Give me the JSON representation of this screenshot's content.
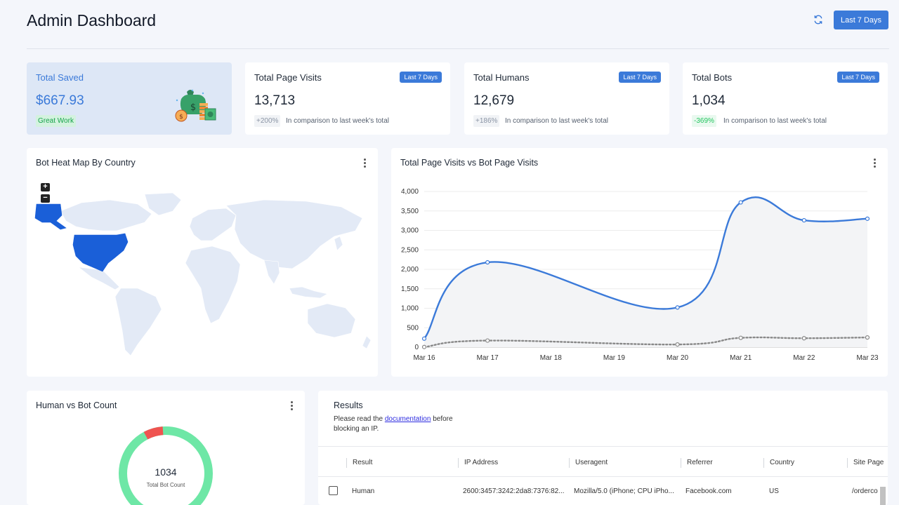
{
  "header": {
    "title": "Admin Dashboard",
    "refresh_icon": "refresh-icon",
    "range_label": "Last 7 Days"
  },
  "stats": {
    "saved": {
      "title": "Total Saved",
      "value": "$667.93",
      "badge": "Great Work",
      "icon": "money-icon"
    },
    "visits": {
      "title": "Total Page Visits",
      "badge": "Last 7 Days",
      "value": "13,713",
      "change": "+200%",
      "note": "In comparison to last week's total"
    },
    "humans": {
      "title": "Total Humans",
      "badge": "Last 7 Days",
      "value": "12,679",
      "change": "+186%",
      "note": "In comparison to last week's total"
    },
    "bots": {
      "title": "Total Bots",
      "badge": "Last 7 Days",
      "value": "1,034",
      "change": "-369%",
      "note": "In comparison to last week's total"
    }
  },
  "map": {
    "title": "Bot Heat Map By Country",
    "zoom_in": "+",
    "zoom_out": "−",
    "highlight_color": "#1a5fd8",
    "base_color": "#e3eaf6",
    "highlighted_countries": [
      "United States"
    ]
  },
  "visits_chart": {
    "title": "Total Page Visits vs Bot Page Visits"
  },
  "chart_data": {
    "type": "line",
    "categories": [
      "Mar 16",
      "Mar 17",
      "Mar 18",
      "Mar 19",
      "Mar 20",
      "Mar 21",
      "Mar 22",
      "Mar 23"
    ],
    "ylim": [
      0,
      4000
    ],
    "yticks": [
      "0",
      "500",
      "1,000",
      "1,500",
      "2,000",
      "2,500",
      "3,000",
      "3,500",
      "4,000"
    ],
    "grid": true,
    "series": [
      {
        "values": [
          220,
          2180,
          null,
          null,
          1020,
          3720,
          3260,
          3300
        ],
        "color": "#3b7ad9",
        "style": "solid"
      },
      {
        "values": [
          5,
          170,
          null,
          null,
          70,
          240,
          230,
          250
        ],
        "color": "#888888",
        "style": "dotted"
      }
    ]
  },
  "donut": {
    "title": "Human vs Bot Count",
    "value": "1034",
    "label": "Total Bot Count",
    "human_color": "#6ee7a6",
    "bot_color": "#ef5350"
  },
  "results": {
    "title": "Results",
    "desc_before": "Please read the ",
    "desc_link": "documentation",
    "desc_after": " before blocking an IP.",
    "columns": [
      "Result",
      "IP Address",
      "Useragent",
      "Referrer",
      "Country",
      "Site Page"
    ],
    "rows": [
      {
        "result": "Human",
        "ip": "2600:3457:3242:2da8:7376:82...",
        "useragent": "Mozilla/5.0 (iPhone; CPU iPho...",
        "referrer": "Facebook.com",
        "country": "US",
        "page": "/orderco"
      }
    ]
  }
}
